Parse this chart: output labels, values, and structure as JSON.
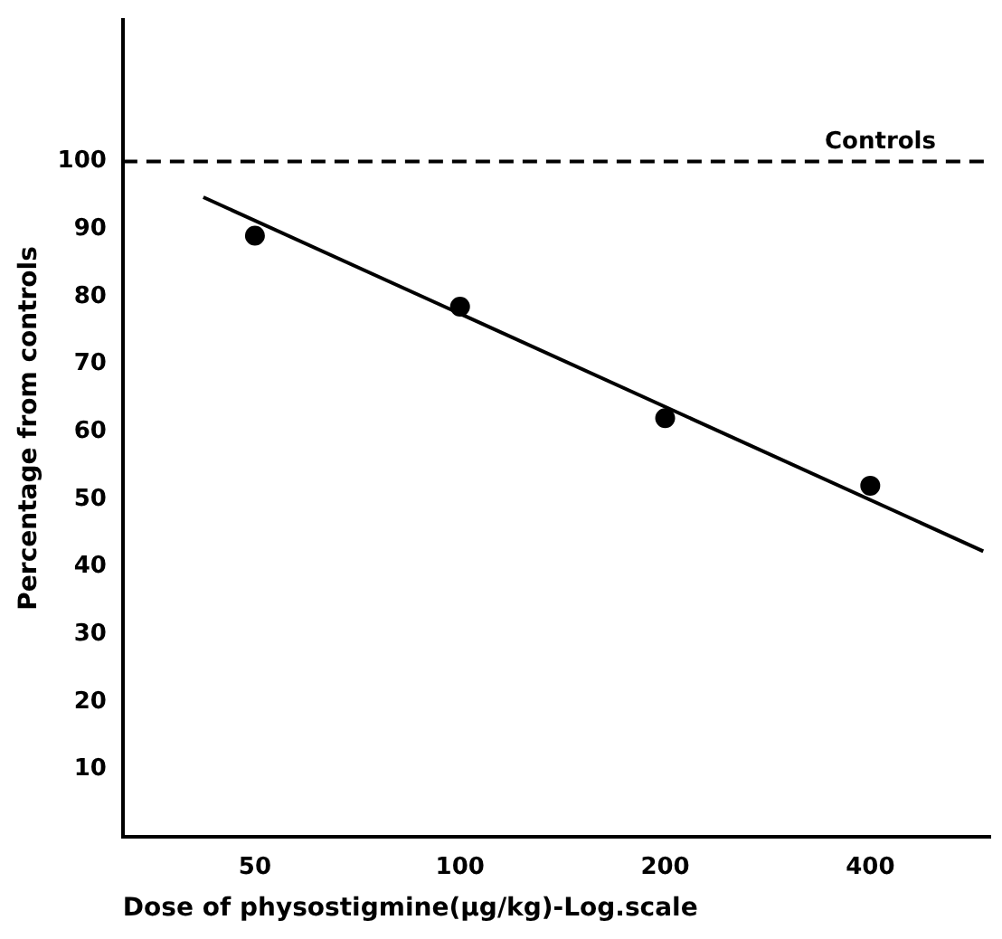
{
  "chart_data": {
    "type": "scatter",
    "xlabel": "Dose of physostigmine(μg/kg)-Log.scale",
    "ylabel": "Percentage from controls",
    "log": "x",
    "xlim": [
      32,
      600
    ],
    "xticks": [
      50,
      100,
      200,
      400
    ],
    "ylim": [
      0,
      121
    ],
    "yticks": [
      10,
      20,
      30,
      40,
      50,
      60,
      70,
      80,
      90,
      100
    ],
    "grid": false,
    "legend": false,
    "marker": "circle",
    "x": [
      50,
      100,
      200,
      400
    ],
    "series": [
      {
        "type": "scatter",
        "color": "#000000",
        "values": [
          89,
          78.5,
          62,
          52
        ]
      },
      {
        "type": "line",
        "color": "#000000",
        "x": [
          42,
          586
        ],
        "values": [
          94.7,
          42.3
        ],
        "line_style": "solid",
        "marker": "none"
      }
    ],
    "ref_lines": [
      {
        "axis": "y",
        "value": 100,
        "label": "Controls",
        "color": "#000000",
        "line_style": "dashed"
      }
    ]
  }
}
